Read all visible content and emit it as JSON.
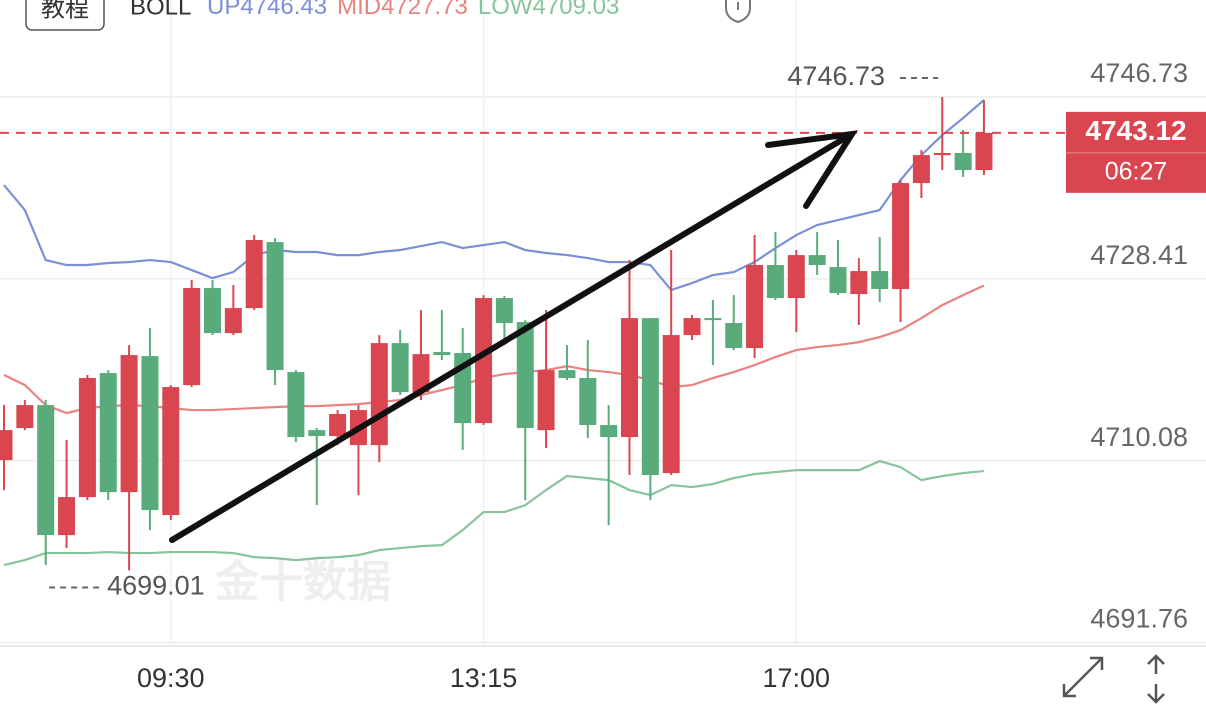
{
  "chart_data": {
    "type": "candlestick",
    "tab_label": "教程",
    "indicator": "BOLL",
    "watermark": "金十数据",
    "up_color": "#d9464f",
    "down_color": "#5aab7b",
    "categories": [
      null,
      null,
      null,
      null,
      null,
      null,
      null,
      null,
      "09:30",
      null,
      null,
      null,
      null,
      null,
      null,
      null,
      null,
      null,
      null,
      null,
      null,
      null,
      null,
      "13:15",
      null,
      null,
      null,
      null,
      null,
      null,
      null,
      null,
      null,
      null,
      null,
      null,
      null,
      null,
      "17:00",
      null,
      null,
      null,
      null,
      null,
      null,
      null,
      null,
      null
    ],
    "open": [
      4710.14,
      4713.37,
      4715.68,
      4702.58,
      4706.41,
      4718.91,
      4706.91,
      4720.62,
      4704.6,
      4717.7,
      4727.48,
      4722.94,
      4725.46,
      4732.11,
      4719.01,
      4713.16,
      4712.56,
      4711.65,
      4711.65,
      4721.93,
      4716.99,
      4721.03,
      4720.93,
      4713.87,
      4726.47,
      4724.05,
      4713.16,
      4719.21,
      4718.41,
      4713.67,
      4712.46,
      4724.45,
      4708.83,
      4722.74,
      4724.45,
      4723.95,
      4721.43,
      4729.8,
      4726.47,
      4730.8,
      4729.59,
      4726.87,
      4729.19,
      4727.38,
      4738.06,
      4740.88,
      4741.09,
      4739.37
    ],
    "high": [
      4715.68,
      4716.19,
      4716.19,
      4712.16,
      4718.71,
      4719.21,
      4721.73,
      4723.45,
      4717.7,
      4728.28,
      4728.28,
      4727.78,
      4732.82,
      4732.52,
      4719.21,
      4713.37,
      4715.18,
      4715.68,
      4722.74,
      4723.24,
      4725.26,
      4725.26,
      4723.45,
      4726.77,
      4726.67,
      4724.25,
      4725.26,
      4721.73,
      4722.24,
      4715.68,
      4730.3,
      4724.45,
      4731.31,
      4724.76,
      4726.27,
      4726.77,
      4732.82,
      4733.12,
      4731.31,
      4733.12,
      4732.32,
      4730.5,
      4732.62,
      4738.36,
      4741.39,
      4746.73,
      4743.4,
      4746.43
    ],
    "low": [
      4707.12,
      4713.16,
      4699.56,
      4701.27,
      4706.11,
      4706.11,
      4699.01,
      4703.08,
      4704.09,
      4717.5,
      4722.74,
      4722.74,
      4725.26,
      4717.7,
      4711.95,
      4705.6,
      4711.65,
      4706.61,
      4709.94,
      4716.69,
      4716.19,
      4720.22,
      4711.15,
      4713.67,
      4721.73,
      4706.11,
      4711.35,
      4718.2,
      4712.36,
      4703.59,
      4708.63,
      4706.11,
      4708.63,
      4722.24,
      4719.72,
      4721.23,
      4720.42,
      4726.27,
      4723.04,
      4728.79,
      4726.77,
      4723.75,
      4726.07,
      4724.05,
      4736.55,
      4739.37,
      4738.67,
      4738.87
    ],
    "close": [
      4713.16,
      4715.68,
      4702.58,
      4706.41,
      4718.41,
      4706.91,
      4720.72,
      4705.1,
      4717.5,
      4727.48,
      4722.94,
      4725.46,
      4732.32,
      4719.21,
      4712.46,
      4712.56,
      4714.78,
      4715.18,
      4721.93,
      4716.99,
      4720.82,
      4720.72,
      4713.87,
      4726.47,
      4723.95,
      4713.37,
      4719.21,
      4718.41,
      4713.67,
      4712.46,
      4724.45,
      4708.63,
      4722.74,
      4724.45,
      4724.25,
      4721.43,
      4729.8,
      4726.47,
      4730.8,
      4729.8,
      4726.97,
      4729.19,
      4727.38,
      4738.06,
      4740.88,
      4741.09,
      4739.37,
      4743.12
    ],
    "series": [
      {
        "name": "UP",
        "color": "#7b8fd6",
        "values": [
          4737.86,
          4735.34,
          4730.3,
          4729.8,
          4729.8,
          4730.0,
          4730.1,
          4730.3,
          4730.1,
          4729.29,
          4728.48,
          4729.09,
          4730.8,
          4731.31,
          4731.11,
          4731.11,
          4730.8,
          4730.8,
          4731.11,
          4731.31,
          4731.71,
          4732.11,
          4731.51,
          4731.81,
          4732.11,
          4731.31,
          4731.01,
          4730.8,
          4730.5,
          4730.1,
          4730.1,
          4729.8,
          4727.28,
          4727.98,
          4728.79,
          4729.09,
          4730.1,
          4731.51,
          4732.82,
          4733.83,
          4734.33,
          4734.84,
          4735.34,
          4738.36,
          4740.88,
          4742.9,
          4744.61,
          4746.43
        ]
      },
      {
        "name": "MID",
        "color": "#e8837f",
        "values": [
          4718.71,
          4717.7,
          4715.68,
          4714.88,
          4715.38,
          4715.58,
          4715.68,
          4715.58,
          4715.38,
          4715.18,
          4715.18,
          4715.28,
          4715.38,
          4715.48,
          4715.58,
          4715.58,
          4715.68,
          4715.78,
          4715.99,
          4716.19,
          4716.69,
          4717.2,
          4717.7,
          4718.41,
          4718.81,
          4719.01,
          4719.21,
          4719.61,
          4719.21,
          4719.01,
          4718.71,
          4718.2,
          4717.5,
          4717.7,
          4718.41,
          4719.01,
          4719.72,
          4720.52,
          4721.23,
          4721.53,
          4721.73,
          4722.03,
          4722.54,
          4723.24,
          4724.45,
          4725.76,
          4726.77,
          4727.73
        ]
      },
      {
        "name": "LOW",
        "color": "#86c49c",
        "values": [
          4699.56,
          4700.06,
          4700.77,
          4700.77,
          4700.77,
          4700.87,
          4700.77,
          4700.77,
          4700.87,
          4700.87,
          4700.87,
          4700.77,
          4700.36,
          4700.26,
          4700.06,
          4700.26,
          4700.36,
          4700.56,
          4701.07,
          4701.27,
          4701.47,
          4701.57,
          4703.08,
          4704.9,
          4704.9,
          4705.6,
          4707.12,
          4708.53,
          4708.33,
          4708.12,
          4707.12,
          4706.61,
          4707.62,
          4707.42,
          4707.72,
          4708.33,
          4708.73,
          4708.93,
          4709.13,
          4709.13,
          4709.13,
          4709.13,
          4710.04,
          4709.43,
          4708.12,
          4708.53,
          4708.83,
          4709.03
        ]
      }
    ],
    "ylim": [
      4691.2,
      4756.51
    ],
    "yticks": [
      4691.76,
      4710.08,
      4728.41,
      4746.73
    ],
    "grid": true,
    "last_price": 4743.12,
    "countdown": "06:27",
    "max_marker": 4746.73,
    "min_marker": 4699.01
  }
}
